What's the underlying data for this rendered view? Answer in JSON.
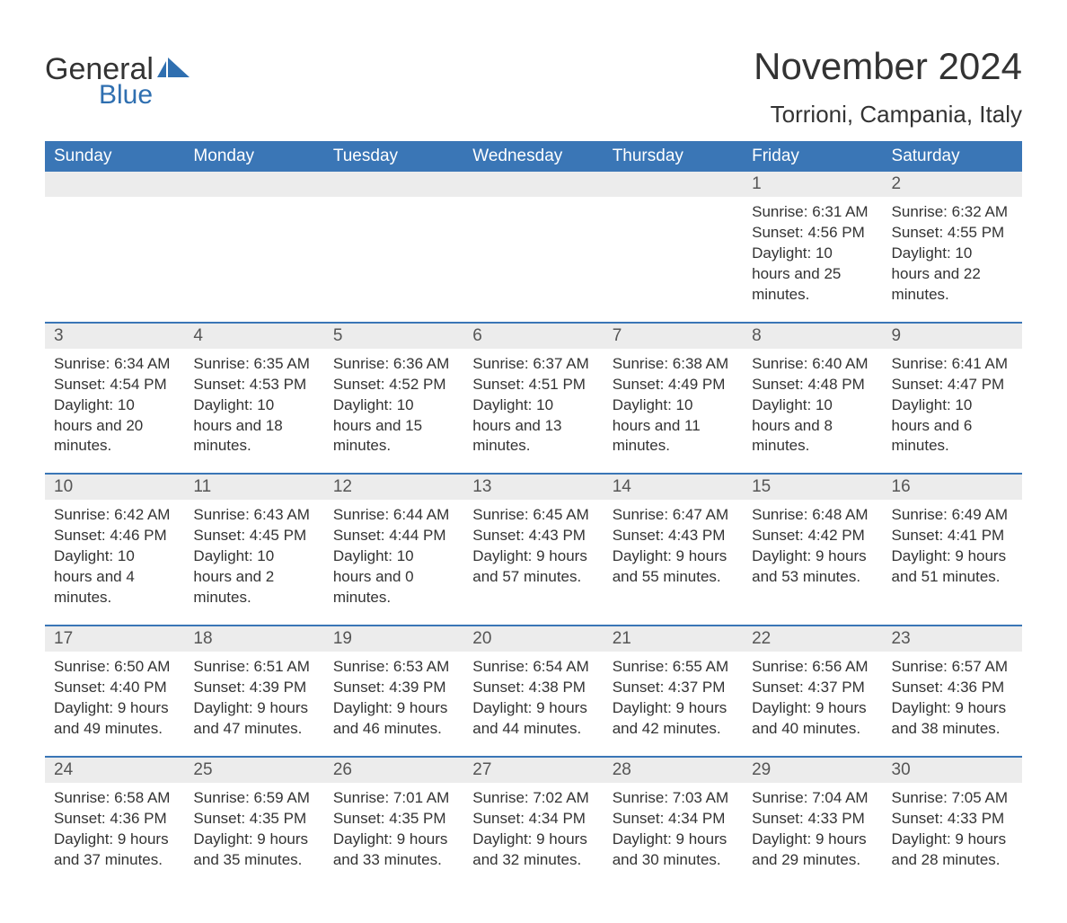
{
  "brand": {
    "word1": "General",
    "word2": "Blue",
    "accent_color": "#2f6fb0"
  },
  "title": "November 2024",
  "location": "Torrioni, Campania, Italy",
  "colors": {
    "header_bg": "#3a76b6",
    "header_text": "#ffffff",
    "daynum_bg": "#ececec",
    "daynum_text": "#555555",
    "body_text": "#333333",
    "rule": "#3a76b6"
  },
  "days_of_week": [
    "Sunday",
    "Monday",
    "Tuesday",
    "Wednesday",
    "Thursday",
    "Friday",
    "Saturday"
  ],
  "label_sunrise": "Sunrise: ",
  "label_sunset": "Sunset: ",
  "label_daylight": "Daylight: ",
  "weeks": [
    [
      null,
      null,
      null,
      null,
      null,
      {
        "n": "1",
        "sunrise": "6:31 AM",
        "sunset": "4:56 PM",
        "daylight": "10 hours and 25 minutes."
      },
      {
        "n": "2",
        "sunrise": "6:32 AM",
        "sunset": "4:55 PM",
        "daylight": "10 hours and 22 minutes."
      }
    ],
    [
      {
        "n": "3",
        "sunrise": "6:34 AM",
        "sunset": "4:54 PM",
        "daylight": "10 hours and 20 minutes."
      },
      {
        "n": "4",
        "sunrise": "6:35 AM",
        "sunset": "4:53 PM",
        "daylight": "10 hours and 18 minutes."
      },
      {
        "n": "5",
        "sunrise": "6:36 AM",
        "sunset": "4:52 PM",
        "daylight": "10 hours and 15 minutes."
      },
      {
        "n": "6",
        "sunrise": "6:37 AM",
        "sunset": "4:51 PM",
        "daylight": "10 hours and 13 minutes."
      },
      {
        "n": "7",
        "sunrise": "6:38 AM",
        "sunset": "4:49 PM",
        "daylight": "10 hours and 11 minutes."
      },
      {
        "n": "8",
        "sunrise": "6:40 AM",
        "sunset": "4:48 PM",
        "daylight": "10 hours and 8 minutes."
      },
      {
        "n": "9",
        "sunrise": "6:41 AM",
        "sunset": "4:47 PM",
        "daylight": "10 hours and 6 minutes."
      }
    ],
    [
      {
        "n": "10",
        "sunrise": "6:42 AM",
        "sunset": "4:46 PM",
        "daylight": "10 hours and 4 minutes."
      },
      {
        "n": "11",
        "sunrise": "6:43 AM",
        "sunset": "4:45 PM",
        "daylight": "10 hours and 2 minutes."
      },
      {
        "n": "12",
        "sunrise": "6:44 AM",
        "sunset": "4:44 PM",
        "daylight": "10 hours and 0 minutes."
      },
      {
        "n": "13",
        "sunrise": "6:45 AM",
        "sunset": "4:43 PM",
        "daylight": "9 hours and 57 minutes."
      },
      {
        "n": "14",
        "sunrise": "6:47 AM",
        "sunset": "4:43 PM",
        "daylight": "9 hours and 55 minutes."
      },
      {
        "n": "15",
        "sunrise": "6:48 AM",
        "sunset": "4:42 PM",
        "daylight": "9 hours and 53 minutes."
      },
      {
        "n": "16",
        "sunrise": "6:49 AM",
        "sunset": "4:41 PM",
        "daylight": "9 hours and 51 minutes."
      }
    ],
    [
      {
        "n": "17",
        "sunrise": "6:50 AM",
        "sunset": "4:40 PM",
        "daylight": "9 hours and 49 minutes."
      },
      {
        "n": "18",
        "sunrise": "6:51 AM",
        "sunset": "4:39 PM",
        "daylight": "9 hours and 47 minutes."
      },
      {
        "n": "19",
        "sunrise": "6:53 AM",
        "sunset": "4:39 PM",
        "daylight": "9 hours and 46 minutes."
      },
      {
        "n": "20",
        "sunrise": "6:54 AM",
        "sunset": "4:38 PM",
        "daylight": "9 hours and 44 minutes."
      },
      {
        "n": "21",
        "sunrise": "6:55 AM",
        "sunset": "4:37 PM",
        "daylight": "9 hours and 42 minutes."
      },
      {
        "n": "22",
        "sunrise": "6:56 AM",
        "sunset": "4:37 PM",
        "daylight": "9 hours and 40 minutes."
      },
      {
        "n": "23",
        "sunrise": "6:57 AM",
        "sunset": "4:36 PM",
        "daylight": "9 hours and 38 minutes."
      }
    ],
    [
      {
        "n": "24",
        "sunrise": "6:58 AM",
        "sunset": "4:36 PM",
        "daylight": "9 hours and 37 minutes."
      },
      {
        "n": "25",
        "sunrise": "6:59 AM",
        "sunset": "4:35 PM",
        "daylight": "9 hours and 35 minutes."
      },
      {
        "n": "26",
        "sunrise": "7:01 AM",
        "sunset": "4:35 PM",
        "daylight": "9 hours and 33 minutes."
      },
      {
        "n": "27",
        "sunrise": "7:02 AM",
        "sunset": "4:34 PM",
        "daylight": "9 hours and 32 minutes."
      },
      {
        "n": "28",
        "sunrise": "7:03 AM",
        "sunset": "4:34 PM",
        "daylight": "9 hours and 30 minutes."
      },
      {
        "n": "29",
        "sunrise": "7:04 AM",
        "sunset": "4:33 PM",
        "daylight": "9 hours and 29 minutes."
      },
      {
        "n": "30",
        "sunrise": "7:05 AM",
        "sunset": "4:33 PM",
        "daylight": "9 hours and 28 minutes."
      }
    ]
  ]
}
